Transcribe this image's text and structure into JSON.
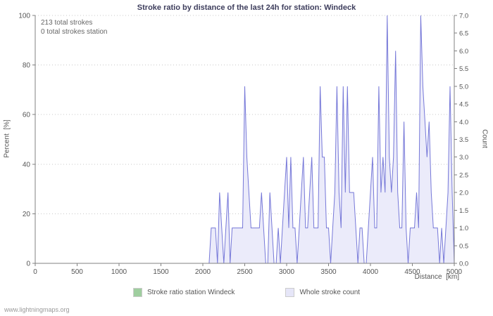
{
  "page": {
    "footer": "www.lightningmaps.org"
  },
  "chart_data": {
    "type": "area",
    "title": "Stroke ratio by distance of the last 24h for station: Windeck",
    "xlabel": "Distance  [km]",
    "ylabel_left": "Percent  [%]",
    "ylabel_right": "Count",
    "xlim": [
      0,
      5000
    ],
    "ylim_left": [
      0,
      100
    ],
    "ylim_right": [
      0,
      7
    ],
    "x_ticks": [
      0,
      500,
      1000,
      1500,
      2000,
      2500,
      3000,
      3500,
      4000,
      4500,
      5000
    ],
    "left_ticks": [
      0,
      20,
      40,
      60,
      80,
      100
    ],
    "right_ticks": [
      "0.0",
      "0.5",
      "1.0",
      "1.5",
      "2.0",
      "2.5",
      "3.0",
      "3.5",
      "4.0",
      "4.5",
      "5.0",
      "5.5",
      "6.0",
      "6.5",
      "7.0"
    ],
    "grid": "horizontal-dotted",
    "annotations": [
      "213 total strokes",
      "0 total strokes station"
    ],
    "legend": [
      {
        "label": "Stroke ratio station Windeck",
        "color": "#9fce9f"
      },
      {
        "label": "Whole stroke count",
        "color": "#e6e6f8"
      }
    ],
    "colors": {
      "line": "#7678d8",
      "area_fill": "#ebebfa",
      "station_ratio": "#9fce9f",
      "axis": "#808080",
      "grid": "#c9c9c9"
    },
    "series": [
      {
        "name": "Stroke ratio station Windeck",
        "id": "stroke-ratio-station-line",
        "axis": "left",
        "color": "#9fce9f",
        "points": [
          [
            0,
            0
          ],
          [
            5000,
            0
          ]
        ]
      },
      {
        "name": "Whole stroke count",
        "id": "whole-stroke-count-line",
        "axis": "right",
        "color": "#7678d8",
        "fill": "#ebebfa",
        "points": [
          [
            0,
            0
          ],
          [
            2050,
            0
          ],
          [
            2075,
            0
          ],
          [
            2100,
            1
          ],
          [
            2125,
            1
          ],
          [
            2150,
            1
          ],
          [
            2175,
            0
          ],
          [
            2200,
            2
          ],
          [
            2225,
            1
          ],
          [
            2250,
            0
          ],
          [
            2275,
            1
          ],
          [
            2300,
            2
          ],
          [
            2325,
            0
          ],
          [
            2350,
            1
          ],
          [
            2375,
            1
          ],
          [
            2400,
            1
          ],
          [
            2425,
            1
          ],
          [
            2450,
            1
          ],
          [
            2475,
            1
          ],
          [
            2500,
            5
          ],
          [
            2525,
            3
          ],
          [
            2550,
            2
          ],
          [
            2575,
            1
          ],
          [
            2600,
            1
          ],
          [
            2625,
            1
          ],
          [
            2650,
            1
          ],
          [
            2675,
            1
          ],
          [
            2700,
            2
          ],
          [
            2725,
            1
          ],
          [
            2750,
            0
          ],
          [
            2775,
            0
          ],
          [
            2800,
            2
          ],
          [
            2825,
            1
          ],
          [
            2850,
            0
          ],
          [
            2875,
            0
          ],
          [
            2900,
            1
          ],
          [
            2925,
            0
          ],
          [
            2950,
            1
          ],
          [
            2975,
            2
          ],
          [
            3000,
            3
          ],
          [
            3025,
            1
          ],
          [
            3050,
            3
          ],
          [
            3075,
            1
          ],
          [
            3100,
            1
          ],
          [
            3125,
            0
          ],
          [
            3150,
            1
          ],
          [
            3175,
            2
          ],
          [
            3200,
            3
          ],
          [
            3225,
            1
          ],
          [
            3250,
            1
          ],
          [
            3275,
            2
          ],
          [
            3300,
            3
          ],
          [
            3325,
            1
          ],
          [
            3350,
            1
          ],
          [
            3375,
            1
          ],
          [
            3400,
            5
          ],
          [
            3425,
            3
          ],
          [
            3450,
            3
          ],
          [
            3475,
            1
          ],
          [
            3500,
            1
          ],
          [
            3525,
            0
          ],
          [
            3550,
            1
          ],
          [
            3575,
            2
          ],
          [
            3600,
            5
          ],
          [
            3625,
            2
          ],
          [
            3650,
            1
          ],
          [
            3675,
            5
          ],
          [
            3700,
            2
          ],
          [
            3725,
            5
          ],
          [
            3750,
            2
          ],
          [
            3775,
            2
          ],
          [
            3800,
            2
          ],
          [
            3825,
            1
          ],
          [
            3850,
            0
          ],
          [
            3875,
            1
          ],
          [
            3900,
            1
          ],
          [
            3925,
            0
          ],
          [
            3950,
            0
          ],
          [
            3975,
            1
          ],
          [
            4000,
            2
          ],
          [
            4025,
            3
          ],
          [
            4050,
            1
          ],
          [
            4075,
            1
          ],
          [
            4100,
            5
          ],
          [
            4125,
            2
          ],
          [
            4150,
            3
          ],
          [
            4175,
            2
          ],
          [
            4200,
            7
          ],
          [
            4225,
            3
          ],
          [
            4250,
            2
          ],
          [
            4275,
            3
          ],
          [
            4300,
            6
          ],
          [
            4325,
            2
          ],
          [
            4350,
            1
          ],
          [
            4375,
            1
          ],
          [
            4400,
            4
          ],
          [
            4425,
            1
          ],
          [
            4450,
            0
          ],
          [
            4475,
            1
          ],
          [
            4500,
            1
          ],
          [
            4525,
            1
          ],
          [
            4550,
            2
          ],
          [
            4575,
            1
          ],
          [
            4600,
            7
          ],
          [
            4625,
            5
          ],
          [
            4650,
            4
          ],
          [
            4675,
            3
          ],
          [
            4700,
            4
          ],
          [
            4725,
            2
          ],
          [
            4750,
            1
          ],
          [
            4775,
            1
          ],
          [
            4800,
            1
          ],
          [
            4825,
            0
          ],
          [
            4850,
            1
          ],
          [
            4875,
            0
          ],
          [
            4900,
            1
          ],
          [
            4925,
            2
          ],
          [
            4950,
            5
          ],
          [
            4975,
            2
          ],
          [
            5000,
            0
          ]
        ]
      }
    ]
  }
}
